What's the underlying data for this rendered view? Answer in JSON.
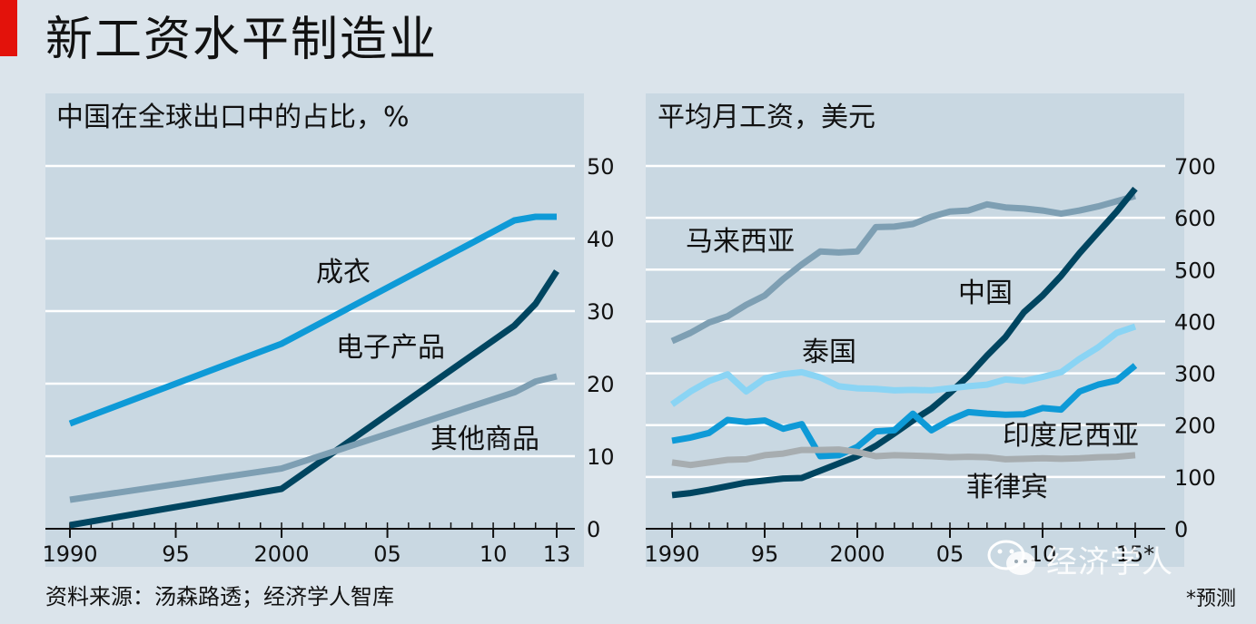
{
  "title": "新工资水平制造业",
  "source": "资料来源：汤森路透；经济学人智库",
  "footnote": "*预测",
  "watermark": {
    "text": "经济学人",
    "icon": "wechat-icon"
  },
  "colors": {
    "background": "#dbe4eb",
    "panel": "#c9d8e2",
    "accent": "#e3120b",
    "dark_blue": "#004560",
    "mid_blue": "#0e9ad7",
    "light_blue": "#8ad4f4",
    "gray_blue": "#7e9fb3",
    "gray": "#a7adb0"
  },
  "chart_data": [
    {
      "type": "line",
      "title": "中国在全球出口中的占比，%",
      "xlim": [
        1990,
        2013
      ],
      "ylim": [
        0,
        50
      ],
      "yticks": [
        0,
        10,
        20,
        30,
        40,
        50
      ],
      "xticks": [
        {
          "value": 1990,
          "label": "1990"
        },
        {
          "value": 1995,
          "label": "95"
        },
        {
          "value": 2000,
          "label": "2000"
        },
        {
          "value": 2005,
          "label": "05"
        },
        {
          "value": 2010,
          "label": "10"
        },
        {
          "value": 2013,
          "label": "13"
        }
      ],
      "grid": true,
      "series": [
        {
          "name": "成衣",
          "color": "#0e9ad7",
          "x": [
            1990,
            2000,
            2011,
            2012,
            2013
          ],
          "y": [
            14.5,
            25.5,
            42.5,
            43,
            43
          ]
        },
        {
          "name": "电子产品",
          "color": "#004560",
          "x": [
            1990,
            2000,
            2011,
            2012,
            2013
          ],
          "y": [
            0.5,
            5.5,
            28,
            31,
            35.5
          ]
        },
        {
          "name": "其他商品",
          "color": "#7e9fb3",
          "x": [
            1990,
            2000,
            2011,
            2012,
            2013
          ],
          "y": [
            4,
            8.3,
            18.8,
            20.3,
            21
          ]
        }
      ]
    },
    {
      "type": "line",
      "title": "平均月工资，美元",
      "xlim": [
        1990,
        2015
      ],
      "ylim": [
        0,
        700
      ],
      "yticks": [
        0,
        100,
        200,
        300,
        400,
        500,
        600,
        700
      ],
      "xticks": [
        {
          "value": 1990,
          "label": "1990"
        },
        {
          "value": 1995,
          "label": "95"
        },
        {
          "value": 2000,
          "label": "2000"
        },
        {
          "value": 2005,
          "label": "05"
        },
        {
          "value": 2010,
          "label": "10"
        },
        {
          "value": 2015,
          "label": "15*"
        }
      ],
      "grid": true,
      "series": [
        {
          "name": "马来西亚",
          "color": "#7e9fb3",
          "x": [
            1990,
            1991,
            1992,
            1993,
            1994,
            1995,
            1996,
            1997,
            1998,
            1999,
            2000,
            2001,
            2002,
            2003,
            2004,
            2005,
            2006,
            2007,
            2008,
            2009,
            2010,
            2011,
            2012,
            2013,
            2014,
            2015
          ],
          "y": [
            362,
            378,
            398,
            410,
            432,
            450,
            482,
            510,
            535,
            533,
            535,
            582,
            583,
            588,
            602,
            612,
            614,
            626,
            620,
            618,
            614,
            608,
            614,
            622,
            632,
            642
          ]
        },
        {
          "name": "中国",
          "color": "#004560",
          "x": [
            1990,
            1991,
            1992,
            1993,
            1994,
            1995,
            1996,
            1997,
            1998,
            1999,
            2000,
            2001,
            2002,
            2003,
            2004,
            2005,
            2006,
            2007,
            2008,
            2009,
            2010,
            2011,
            2012,
            2013,
            2014,
            2015
          ],
          "y": [
            65,
            69,
            75,
            82,
            89,
            93,
            97,
            98,
            112,
            126,
            140,
            160,
            184,
            209,
            232,
            262,
            295,
            334,
            370,
            418,
            450,
            488,
            532,
            572,
            612,
            656
          ]
        },
        {
          "name": "泰国",
          "color": "#8ad4f4",
          "x": [
            1990,
            1991,
            1992,
            1993,
            1994,
            1995,
            1996,
            1997,
            1998,
            1999,
            2000,
            2001,
            2002,
            2003,
            2004,
            2005,
            2006,
            2007,
            2008,
            2009,
            2010,
            2011,
            2012,
            2013,
            2014,
            2015
          ],
          "y": [
            240,
            265,
            285,
            298,
            265,
            290,
            298,
            302,
            292,
            275,
            271,
            270,
            267,
            268,
            267,
            271,
            275,
            278,
            288,
            285,
            293,
            302,
            328,
            350,
            378,
            390
          ]
        },
        {
          "name": "印度尼西亚",
          "color": "#0e9ad7",
          "x": [
            1990,
            1991,
            1992,
            1993,
            1994,
            1995,
            1996,
            1997,
            1998,
            1999,
            2000,
            2001,
            2002,
            2003,
            2004,
            2005,
            2006,
            2007,
            2008,
            2009,
            2010,
            2011,
            2012,
            2013,
            2014,
            2015
          ],
          "y": [
            170,
            176,
            185,
            210,
            206,
            209,
            193,
            202,
            140,
            142,
            158,
            188,
            190,
            222,
            190,
            210,
            225,
            222,
            220,
            221,
            233,
            230,
            265,
            278,
            286,
            315
          ]
        },
        {
          "name": "菲律宾",
          "color": "#a7adb0",
          "x": [
            1990,
            1991,
            1992,
            1993,
            1994,
            1995,
            1996,
            1997,
            1998,
            1999,
            2000,
            2001,
            2002,
            2003,
            2004,
            2005,
            2006,
            2007,
            2008,
            2009,
            2010,
            2011,
            2012,
            2013,
            2014,
            2015
          ],
          "y": [
            128,
            123,
            128,
            133,
            134,
            142,
            145,
            152,
            152,
            153,
            148,
            140,
            142,
            141,
            140,
            138,
            139,
            138,
            134,
            135,
            136,
            135,
            136,
            138,
            139,
            142
          ]
        }
      ]
    }
  ]
}
